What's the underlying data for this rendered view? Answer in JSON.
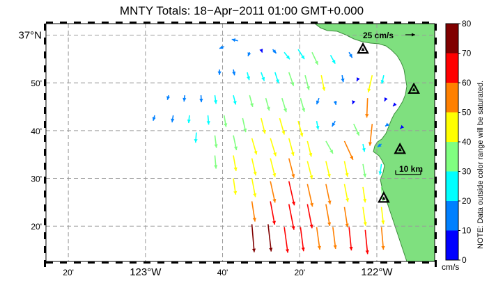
{
  "map": {
    "title": "MNTY Totals: 18−Apr−2011 01:00 GMT+0.000",
    "lat_labels": [
      {
        "lat": 37.0,
        "text": "37°N"
      },
      {
        "lat": 36.8333,
        "text": "50'"
      },
      {
        "lat": 36.6667,
        "text": "40'"
      },
      {
        "lat": 36.5,
        "text": "30'"
      },
      {
        "lat": 36.3333,
        "text": "20'"
      }
    ],
    "lon_labels": [
      {
        "lon": -123.3333,
        "text": "20'"
      },
      {
        "lon": -123.0,
        "text": "123°W"
      },
      {
        "lon": -122.6667,
        "text": "40'"
      },
      {
        "lon": -122.3333,
        "text": "20'"
      },
      {
        "lon": -122.0,
        "text": "122°W"
      }
    ],
    "extent": {
      "lon_min": -123.43,
      "lon_max": -121.75,
      "lat_min": 36.21,
      "lat_max": 37.04
    },
    "reference_vector": {
      "label": "25 cm/s",
      "speed_cm_s": 25
    },
    "scale_bar": {
      "label": "10 km",
      "km": 10
    },
    "colors": {
      "land": "#7fe07f",
      "land_edge": "#3c8c3c",
      "grid": "#9a9a9a",
      "frame": "#000000"
    },
    "stations": [
      {
        "lon": -122.06,
        "lat": 36.95
      },
      {
        "lon": -121.84,
        "lat": 36.81
      },
      {
        "lon": -121.9,
        "lat": 36.6
      },
      {
        "lon": -121.97,
        "lat": 36.43
      }
    ],
    "vectors": [
      {
        "lon": -122.66,
        "lat": 36.96,
        "u": -12,
        "v": -5
      },
      {
        "lon": -122.6,
        "lat": 36.98,
        "u": -16,
        "v": 4
      },
      {
        "lon": -122.55,
        "lat": 36.94,
        "u": -4,
        "v": -10
      },
      {
        "lon": -122.5,
        "lat": 36.95,
        "u": 3,
        "v": -8
      },
      {
        "lon": -122.45,
        "lat": 36.95,
        "u": 9,
        "v": -10
      },
      {
        "lon": -122.4,
        "lat": 36.94,
        "u": 14,
        "v": -18
      },
      {
        "lon": -122.34,
        "lat": 36.95,
        "u": 16,
        "v": -25
      },
      {
        "lon": -122.28,
        "lat": 36.94,
        "u": 15,
        "v": -32
      },
      {
        "lon": -122.2,
        "lat": 36.93,
        "u": 12,
        "v": -22
      },
      {
        "lon": -122.12,
        "lat": 36.94,
        "u": 8,
        "v": -14
      },
      {
        "lon": -122.68,
        "lat": 36.88,
        "u": 0,
        "v": -14
      },
      {
        "lon": -122.62,
        "lat": 36.88,
        "u": 3,
        "v": -15
      },
      {
        "lon": -122.56,
        "lat": 36.87,
        "u": 5,
        "v": -20
      },
      {
        "lon": -122.5,
        "lat": 36.87,
        "u": 8,
        "v": -22
      },
      {
        "lon": -122.44,
        "lat": 36.87,
        "u": 9,
        "v": -28
      },
      {
        "lon": -122.38,
        "lat": 36.87,
        "u": 12,
        "v": -35
      },
      {
        "lon": -122.31,
        "lat": 36.86,
        "u": 10,
        "v": -38
      },
      {
        "lon": -122.24,
        "lat": 36.86,
        "u": 8,
        "v": -40
      },
      {
        "lon": -122.15,
        "lat": 36.86,
        "u": 3,
        "v": -18
      },
      {
        "lon": -122.08,
        "lat": 36.85,
        "u": -4,
        "v": -8
      },
      {
        "lon": -122.02,
        "lat": 36.86,
        "u": -10,
        "v": -44
      },
      {
        "lon": -121.97,
        "lat": 36.86,
        "u": -5,
        "v": -22
      },
      {
        "lon": -122.9,
        "lat": 36.79,
        "u": -3,
        "v": -12
      },
      {
        "lon": -122.83,
        "lat": 36.79,
        "u": -2,
        "v": -16
      },
      {
        "lon": -122.76,
        "lat": 36.79,
        "u": 1,
        "v": -18
      },
      {
        "lon": -122.7,
        "lat": 36.79,
        "u": 3,
        "v": -22
      },
      {
        "lon": -122.62,
        "lat": 36.79,
        "u": 6,
        "v": -24
      },
      {
        "lon": -122.55,
        "lat": 36.79,
        "u": 8,
        "v": -30
      },
      {
        "lon": -122.48,
        "lat": 36.78,
        "u": 9,
        "v": -32
      },
      {
        "lon": -122.41,
        "lat": 36.78,
        "u": 11,
        "v": -36
      },
      {
        "lon": -122.33,
        "lat": 36.78,
        "u": 10,
        "v": -35
      },
      {
        "lon": -122.25,
        "lat": 36.78,
        "u": -6,
        "v": -16
      },
      {
        "lon": -122.18,
        "lat": 36.77,
        "u": 2,
        "v": -10
      },
      {
        "lon": -122.1,
        "lat": 36.77,
        "u": -3,
        "v": -8
      },
      {
        "lon": -122.04,
        "lat": 36.78,
        "u": -2,
        "v": -50
      },
      {
        "lon": -121.96,
        "lat": 36.78,
        "u": -4,
        "v": -8
      },
      {
        "lon": -121.92,
        "lat": 36.76,
        "u": -6,
        "v": -6
      },
      {
        "lon": -122.96,
        "lat": 36.72,
        "u": -4,
        "v": -14
      },
      {
        "lon": -122.88,
        "lat": 36.72,
        "u": -3,
        "v": -18
      },
      {
        "lon": -122.81,
        "lat": 36.72,
        "u": -2,
        "v": -20
      },
      {
        "lon": -122.73,
        "lat": 36.72,
        "u": 2,
        "v": -24
      },
      {
        "lon": -122.66,
        "lat": 36.72,
        "u": 5,
        "v": -30
      },
      {
        "lon": -122.58,
        "lat": 36.71,
        "u": 8,
        "v": -36
      },
      {
        "lon": -122.5,
        "lat": 36.71,
        "u": 10,
        "v": -40
      },
      {
        "lon": -122.42,
        "lat": 36.71,
        "u": 12,
        "v": -42
      },
      {
        "lon": -122.34,
        "lat": 36.7,
        "u": 11,
        "v": -40
      },
      {
        "lon": -122.26,
        "lat": 36.7,
        "u": 4,
        "v": -22
      },
      {
        "lon": -122.18,
        "lat": 36.7,
        "u": -8,
        "v": -14
      },
      {
        "lon": -122.1,
        "lat": 36.69,
        "u": 14,
        "v": -30
      },
      {
        "lon": -122.02,
        "lat": 36.69,
        "u": -6,
        "v": -56
      },
      {
        "lon": -121.95,
        "lat": 36.69,
        "u": -8,
        "v": -6
      },
      {
        "lon": -121.89,
        "lat": 36.68,
        "u": -5,
        "v": -5
      },
      {
        "lon": -122.78,
        "lat": 36.66,
        "u": -2,
        "v": -26
      },
      {
        "lon": -122.7,
        "lat": 36.65,
        "u": 4,
        "v": -32
      },
      {
        "lon": -122.62,
        "lat": 36.65,
        "u": 8,
        "v": -38
      },
      {
        "lon": -122.54,
        "lat": 36.64,
        "u": 12,
        "v": -42
      },
      {
        "lon": -122.46,
        "lat": 36.64,
        "u": 14,
        "v": -46
      },
      {
        "lon": -122.38,
        "lat": 36.64,
        "u": 12,
        "v": -45
      },
      {
        "lon": -122.3,
        "lat": 36.63,
        "u": 10,
        "v": -40
      },
      {
        "lon": -122.22,
        "lat": 36.63,
        "u": 18,
        "v": -32
      },
      {
        "lon": -122.14,
        "lat": 36.63,
        "u": 22,
        "v": -48
      },
      {
        "lon": -122.06,
        "lat": 36.62,
        "u": 4,
        "v": -20
      },
      {
        "lon": -121.98,
        "lat": 36.62,
        "u": -10,
        "v": -8
      },
      {
        "lon": -122.7,
        "lat": 36.58,
        "u": 3,
        "v": -34
      },
      {
        "lon": -122.62,
        "lat": 36.58,
        "u": 7,
        "v": -40
      },
      {
        "lon": -122.54,
        "lat": 36.57,
        "u": 10,
        "v": -44
      },
      {
        "lon": -122.46,
        "lat": 36.57,
        "u": 12,
        "v": -48
      },
      {
        "lon": -122.38,
        "lat": 36.57,
        "u": 13,
        "v": -50
      },
      {
        "lon": -122.3,
        "lat": 36.56,
        "u": 12,
        "v": -46
      },
      {
        "lon": -122.22,
        "lat": 36.56,
        "u": 10,
        "v": -42
      },
      {
        "lon": -122.14,
        "lat": 36.56,
        "u": 8,
        "v": -40
      },
      {
        "lon": -122.06,
        "lat": 36.55,
        "u": 6,
        "v": -34
      },
      {
        "lon": -121.98,
        "lat": 36.55,
        "u": -4,
        "v": -28
      },
      {
        "lon": -122.62,
        "lat": 36.5,
        "u": 6,
        "v": -42
      },
      {
        "lon": -122.54,
        "lat": 36.5,
        "u": 9,
        "v": -48
      },
      {
        "lon": -122.46,
        "lat": 36.49,
        "u": 12,
        "v": -55
      },
      {
        "lon": -122.38,
        "lat": 36.49,
        "u": 14,
        "v": -62
      },
      {
        "lon": -122.3,
        "lat": 36.48,
        "u": 13,
        "v": -58
      },
      {
        "lon": -122.22,
        "lat": 36.48,
        "u": 11,
        "v": -52
      },
      {
        "lon": -122.14,
        "lat": 36.48,
        "u": 9,
        "v": -46
      },
      {
        "lon": -122.06,
        "lat": 36.47,
        "u": 6,
        "v": -40
      },
      {
        "lon": -121.98,
        "lat": 36.47,
        "u": 4,
        "v": -36
      },
      {
        "lon": -122.54,
        "lat": 36.42,
        "u": 8,
        "v": -52
      },
      {
        "lon": -122.46,
        "lat": 36.42,
        "u": 11,
        "v": -60
      },
      {
        "lon": -122.38,
        "lat": 36.41,
        "u": 13,
        "v": -66
      },
      {
        "lon": -122.3,
        "lat": 36.41,
        "u": 12,
        "v": -62
      },
      {
        "lon": -122.22,
        "lat": 36.41,
        "u": 10,
        "v": -56
      },
      {
        "lon": -122.14,
        "lat": 36.4,
        "u": 8,
        "v": -52
      },
      {
        "lon": -122.06,
        "lat": 36.4,
        "u": 7,
        "v": -48
      },
      {
        "lon": -121.98,
        "lat": 36.4,
        "u": 5,
        "v": -44
      },
      {
        "lon": -122.54,
        "lat": 36.34,
        "u": 6,
        "v": -72
      },
      {
        "lon": -122.47,
        "lat": 36.34,
        "u": 8,
        "v": -70
      },
      {
        "lon": -122.4,
        "lat": 36.33,
        "u": 9,
        "v": -66
      },
      {
        "lon": -122.33,
        "lat": 36.33,
        "u": 8,
        "v": -62
      },
      {
        "lon": -122.26,
        "lat": 36.33,
        "u": 8,
        "v": -58
      },
      {
        "lon": -122.19,
        "lat": 36.33,
        "u": 7,
        "v": -56
      },
      {
        "lon": -122.12,
        "lat": 36.33,
        "u": 6,
        "v": -60
      },
      {
        "lon": -122.05,
        "lat": 36.32,
        "u": 6,
        "v": -62
      },
      {
        "lon": -121.98,
        "lat": 36.33,
        "u": 5,
        "v": -58
      }
    ]
  },
  "colorbar": {
    "min": 0,
    "max": 80,
    "ticks": [
      "0",
      "10",
      "20",
      "30",
      "40",
      "50",
      "60",
      "70",
      "80"
    ],
    "unit": "cm/s",
    "note": "NOTE: Data outside color range will be saturated.",
    "colors": [
      "#0000ff",
      "#0080ff",
      "#00ffff",
      "#80ff80",
      "#ffff00",
      "#ff8000",
      "#ff0000",
      "#800000"
    ]
  }
}
